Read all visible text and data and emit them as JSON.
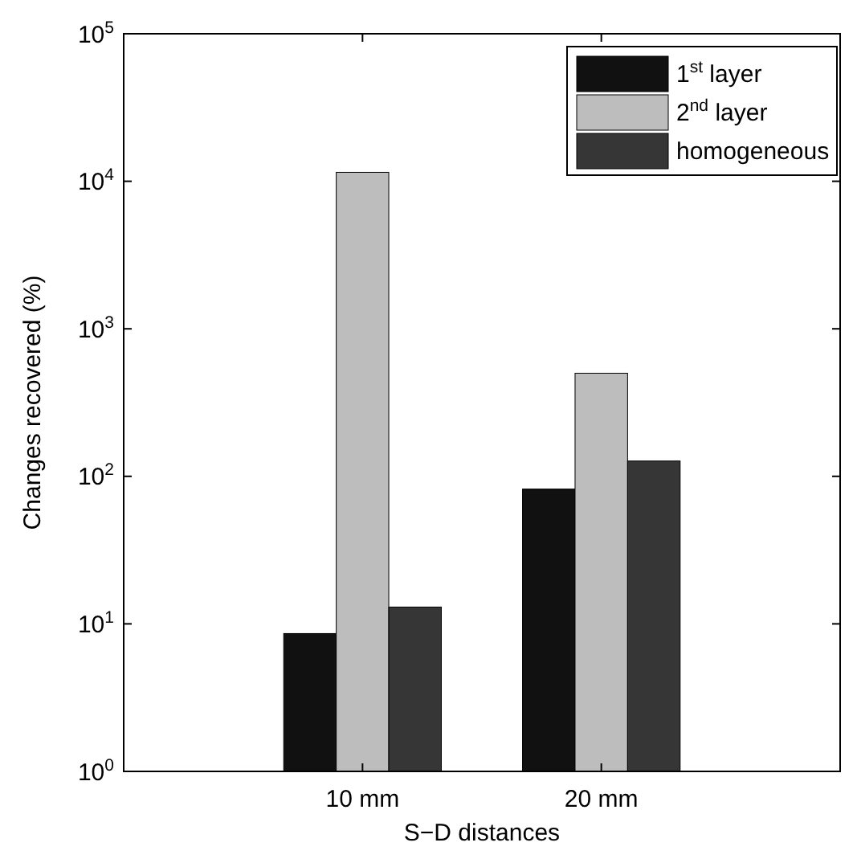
{
  "chart_data": {
    "type": "bar",
    "xlabel": "S−D distances",
    "ylabel": "Changes recovered (%)",
    "categories": [
      "10 mm",
      "20 mm"
    ],
    "series": [
      {
        "name": "1$^{st}$ layer",
        "color": "#111111",
        "values": [
          8.6,
          82
        ]
      },
      {
        "name": "2$^{nd}$ layer",
        "color": "#bdbdbd",
        "values": [
          11500,
          500
        ]
      },
      {
        "name": "homogeneous",
        "color": "#363636",
        "values": [
          13,
          127
        ]
      }
    ],
    "log": true,
    "ylim": [
      1,
      100000
    ],
    "yticks": [
      {
        "value": 1,
        "label": "10$^{0}$"
      },
      {
        "value": 10,
        "label": "10$^{1}$"
      },
      {
        "value": 100,
        "label": "10$^{2}$"
      },
      {
        "value": 1000,
        "label": "10$^{3}$"
      },
      {
        "value": 10000,
        "label": "10$^{4}$"
      },
      {
        "value": 100000,
        "label": "10$^{5}$"
      }
    ],
    "grid": false,
    "legend": "top right"
  }
}
